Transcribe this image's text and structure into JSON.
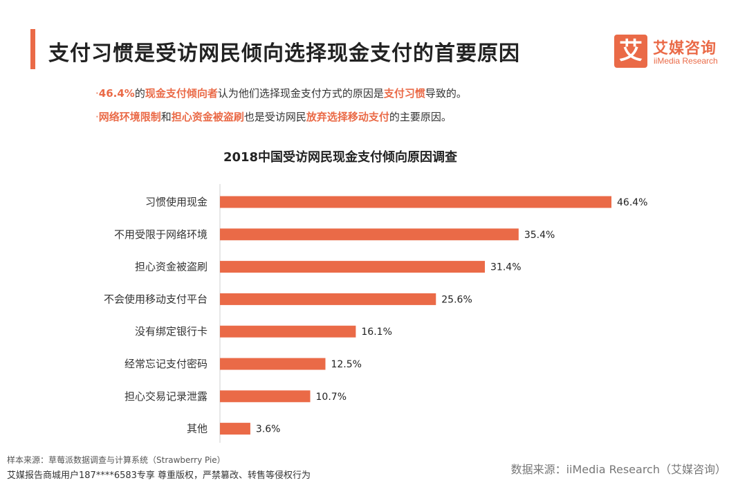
{
  "header": {
    "title": "支付习惯是受访网民倾向选择现金支付的首要原因"
  },
  "logo": {
    "mark": "艾",
    "name_cn": "艾媒咨询",
    "name_en": "iiMedia Research"
  },
  "bullets": [
    {
      "dot": "·",
      "parts": [
        {
          "text": "46.4%",
          "hl": true
        },
        {
          "text": "的",
          "hl": false
        },
        {
          "text": "现金支付倾向者",
          "hl": true
        },
        {
          "text": "认为他们选择现金支付方式的原因是",
          "hl": false
        },
        {
          "text": "支付习惯",
          "hl": true
        },
        {
          "text": "导致的。",
          "hl": false
        }
      ]
    },
    {
      "dot": "·",
      "parts": [
        {
          "text": "网络环境限制",
          "hl": true
        },
        {
          "text": "和",
          "hl": false
        },
        {
          "text": "担心资金被盗刷",
          "hl": true
        },
        {
          "text": "也是受访网民",
          "hl": false
        },
        {
          "text": "放弃选择移动支付",
          "hl": true
        },
        {
          "text": "的主要原因。",
          "hl": false
        }
      ]
    }
  ],
  "chart_data": {
    "type": "bar",
    "orientation": "horizontal",
    "title": "2018中国受访网民现金支付倾向原因调查",
    "categories": [
      "习惯使用现金",
      "不用受限于网络环境",
      "担心资金被盗刷",
      "不会使用移动支付平台",
      "没有绑定银行卡",
      "经常忘记支付密码",
      "担心交易记录泄露",
      "其他"
    ],
    "values": [
      46.4,
      35.4,
      31.4,
      25.6,
      16.1,
      12.5,
      10.7,
      3.6
    ],
    "value_labels": [
      "46.4%",
      "35.4%",
      "31.4%",
      "25.6%",
      "16.1%",
      "12.5%",
      "10.7%",
      "3.6%"
    ],
    "xlim": [
      0,
      50
    ],
    "grid": false,
    "bar_color": "#ea6a47"
  },
  "footer": {
    "sample_source": "样本来源：草莓派数据调查与计算系统（Strawberry Pie）",
    "copyright": "艾媒报告商城用户187****6583专享 尊重版权，严禁篡改、转售等侵权行为",
    "data_source": "数据来源：iiMedia Research（艾媒咨询）"
  }
}
